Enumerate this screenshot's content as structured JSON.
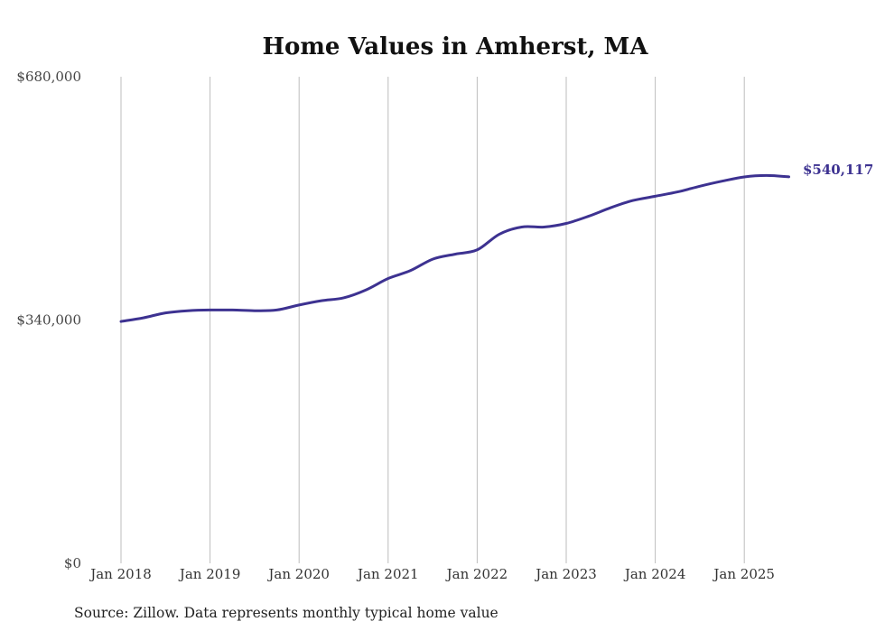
{
  "chart_data": {
    "type": "line",
    "title": "Home Values in Amherst, MA",
    "xlabel": "",
    "ylabel": "",
    "ylim": [
      0,
      680000
    ],
    "yticks": [
      "$680,000",
      "$340,000",
      "$0"
    ],
    "ytick_values": [
      680000,
      340000,
      0
    ],
    "xticks": [
      "Jan 2018",
      "Jan 2019",
      "Jan 2020",
      "Jan 2021",
      "Jan 2022",
      "Jan 2023",
      "Jan 2024",
      "Jan 2025"
    ],
    "xtick_dates": [
      "2018-01",
      "2019-01",
      "2020-01",
      "2021-01",
      "2022-01",
      "2023-01",
      "2024-01",
      "2025-01"
    ],
    "grid": "vertical",
    "line_color": "#3d3291",
    "end_label": "$540,117",
    "series": [
      {
        "x": [
          "2018-01",
          "2018-04",
          "2018-07",
          "2018-10",
          "2019-01",
          "2019-04",
          "2019-07",
          "2019-10",
          "2020-01",
          "2020-04",
          "2020-07",
          "2020-10",
          "2021-01",
          "2021-04",
          "2021-07",
          "2021-10",
          "2022-01",
          "2022-04",
          "2022-07",
          "2022-10",
          "2023-01",
          "2023-04",
          "2023-07",
          "2023-10",
          "2024-01",
          "2024-04",
          "2024-07",
          "2024-10",
          "2025-01",
          "2025-04",
          "2025-07"
        ],
        "values": [
          338000,
          343000,
          350000,
          353000,
          354000,
          354000,
          353000,
          354000,
          361000,
          367000,
          371000,
          382000,
          398000,
          409000,
          425000,
          432000,
          438000,
          460000,
          470000,
          470000,
          475000,
          485000,
          497000,
          507000,
          513000,
          519000,
          527000,
          534000,
          540000,
          542000,
          540117
        ]
      }
    ],
    "source": "Source: Zillow. Data represents monthly typical home value"
  }
}
